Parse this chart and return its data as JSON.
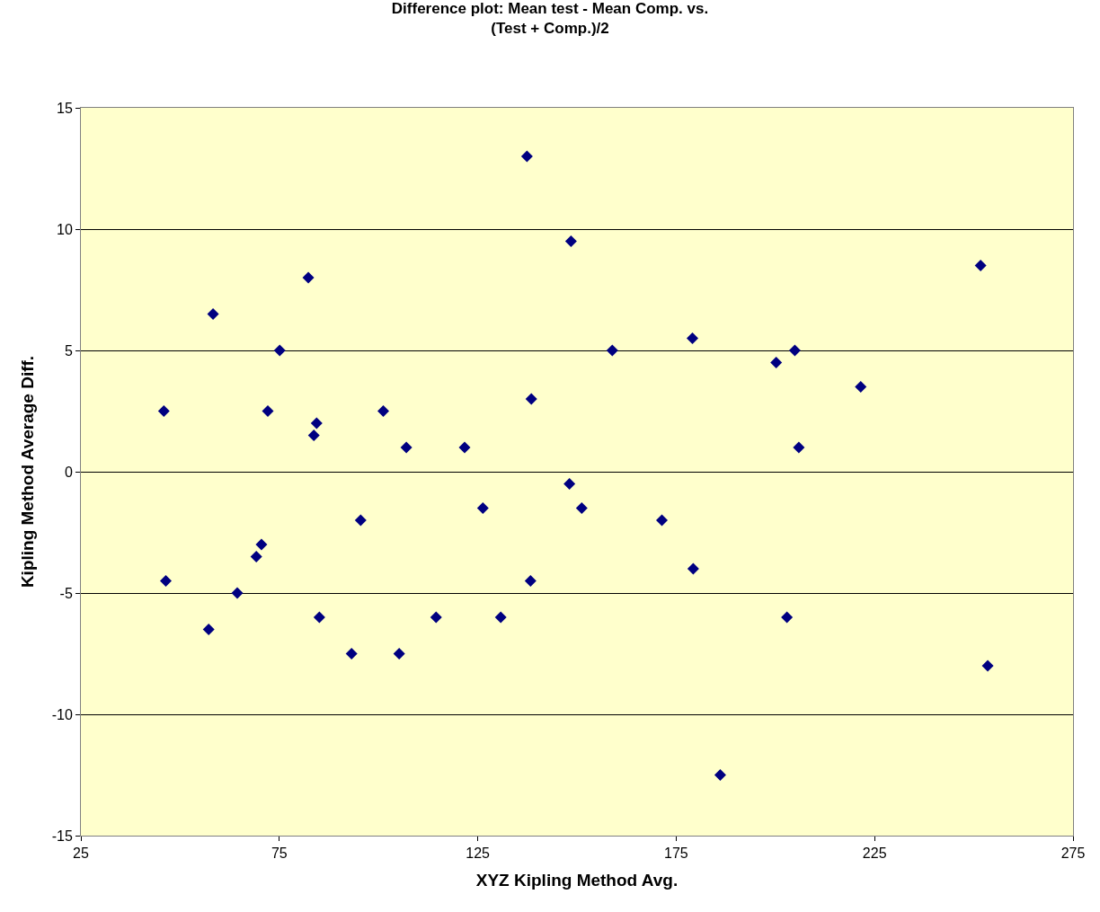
{
  "chart_data": {
    "type": "scatter",
    "title": "Difference plot: Mean test - Mean Comp. vs.\n(Test + Comp.)/2",
    "xlabel": "XYZ Kipling Method Avg.",
    "ylabel": "Kipling Method Average Diff.",
    "series": [
      {
        "color": "#000080",
        "x": [
          45.9,
          46.4,
          57.2,
          58.3,
          64.4,
          69.2,
          70.5,
          72.1,
          75.1,
          82.3,
          83.7,
          84.4,
          85.1,
          93.2,
          95.5,
          101.2,
          105.2,
          107.0,
          114.5,
          121.7,
          126.3,
          130.8,
          137.4,
          138.3,
          138.5,
          148.1,
          148.5,
          151.2,
          158.9,
          171.4,
          179.1,
          179.3,
          186.1,
          200.2,
          202.9,
          204.9,
          205.9,
          221.5,
          251.7,
          253.5
        ],
        "values": [
          2.5,
          -4.5,
          -6.5,
          6.5,
          -5,
          -3.5,
          -3,
          2.5,
          5,
          8,
          1.5,
          2,
          -6,
          -7.5,
          -2,
          2.5,
          -7.5,
          1,
          -6,
          1,
          -1.5,
          -6,
          13,
          -4.5,
          3,
          -0.5,
          9.5,
          -1.5,
          5,
          -2,
          5.5,
          -4,
          -12.5,
          4.5,
          -6,
          5,
          1,
          3.5,
          8.5,
          -8
        ]
      }
    ],
    "xlim": [
      25,
      275
    ],
    "xticks": [
      25,
      75,
      125,
      175,
      225,
      275
    ],
    "ylim": [
      -15,
      15
    ],
    "yticks": [
      -15,
      -10,
      -5,
      0,
      5,
      10,
      15
    ],
    "grid": "y",
    "legend": false,
    "marker": "diamond"
  }
}
